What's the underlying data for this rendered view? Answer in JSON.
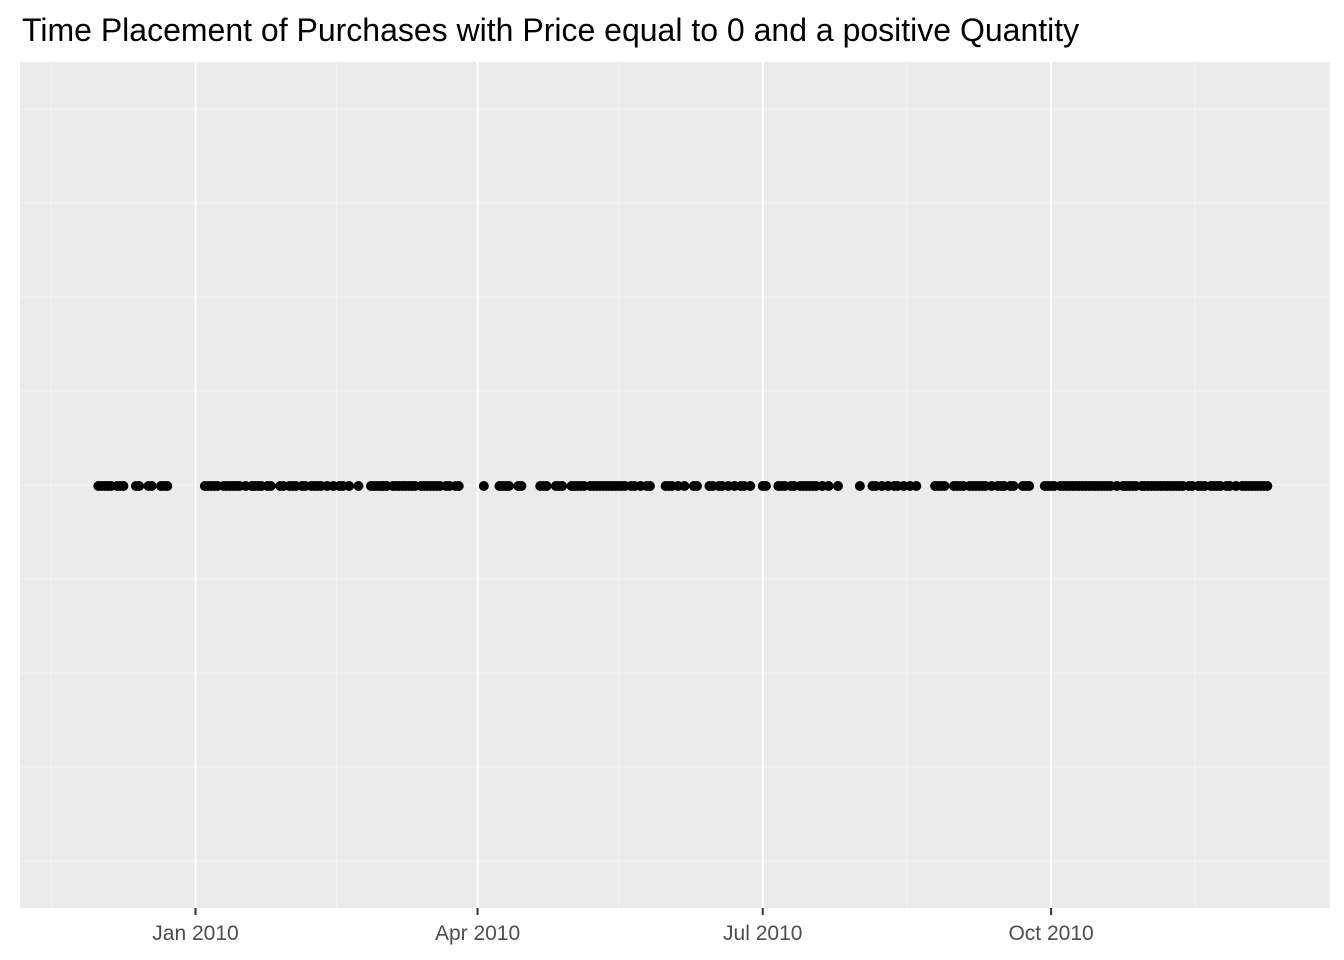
{
  "chart_data": {
    "type": "scatter",
    "title": "Time Placement of Purchases with Price equal to 0 and a positive Quantity",
    "xlabel": "",
    "ylabel": "",
    "x_axis": {
      "type": "date",
      "range": [
        "2009-11-06",
        "2010-12-29"
      ],
      "major_ticks": [
        {
          "date": "2010-01-01",
          "label": "Jan 2010"
        },
        {
          "date": "2010-04-01",
          "label": "Apr 2010"
        },
        {
          "date": "2010-07-01",
          "label": "Jul 2010"
        },
        {
          "date": "2010-10-01",
          "label": "Oct 2010"
        }
      ],
      "minor_ticks": [
        "2009-11-16",
        "2010-02-15",
        "2010-05-16",
        "2010-08-16",
        "2010-11-16"
      ]
    },
    "y_axis": {
      "ticks_shown": false,
      "gridlines": 9
    },
    "grid": true,
    "background": "#ebebeb",
    "point_color": "#000000",
    "x": [
      "2009-12-01",
      "2009-12-02",
      "2009-12-03",
      "2009-12-04",
      "2009-12-05",
      "2009-12-07",
      "2009-12-08",
      "2009-12-09",
      "2009-12-13",
      "2009-12-14",
      "2009-12-17",
      "2009-12-18",
      "2009-12-21",
      "2009-12-22",
      "2009-12-23",
      "2010-01-04",
      "2010-01-05",
      "2010-01-06",
      "2010-01-07",
      "2010-01-08",
      "2010-01-10",
      "2010-01-11",
      "2010-01-12",
      "2010-01-13",
      "2010-01-14",
      "2010-01-15",
      "2010-01-17",
      "2010-01-19",
      "2010-01-20",
      "2010-01-21",
      "2010-01-22",
      "2010-01-24",
      "2010-01-25",
      "2010-01-28",
      "2010-01-29",
      "2010-01-31",
      "2010-02-01",
      "2010-02-02",
      "2010-02-04",
      "2010-02-05",
      "2010-02-07",
      "2010-02-08",
      "2010-02-09",
      "2010-02-10",
      "2010-02-12",
      "2010-02-14",
      "2010-02-16",
      "2010-02-17",
      "2010-02-19",
      "2010-02-22",
      "2010-02-26",
      "2010-02-27",
      "2010-02-28",
      "2010-03-01",
      "2010-03-02",
      "2010-03-03",
      "2010-03-05",
      "2010-03-06",
      "2010-03-07",
      "2010-03-08",
      "2010-03-09",
      "2010-03-10",
      "2010-03-11",
      "2010-03-12",
      "2010-03-14",
      "2010-03-15",
      "2010-03-16",
      "2010-03-17",
      "2010-03-18",
      "2010-03-19",
      "2010-03-20",
      "2010-03-22",
      "2010-03-23",
      "2010-03-25",
      "2010-03-26",
      "2010-04-03",
      "2010-04-08",
      "2010-04-09",
      "2010-04-10",
      "2010-04-11",
      "2010-04-14",
      "2010-04-15",
      "2010-04-21",
      "2010-04-22",
      "2010-04-23",
      "2010-04-26",
      "2010-04-27",
      "2010-04-28",
      "2010-05-01",
      "2010-05-02",
      "2010-05-03",
      "2010-05-04",
      "2010-05-05",
      "2010-05-07",
      "2010-05-08",
      "2010-05-09",
      "2010-05-10",
      "2010-05-11",
      "2010-05-12",
      "2010-05-13",
      "2010-05-14",
      "2010-05-15",
      "2010-05-16",
      "2010-05-17",
      "2010-05-18",
      "2010-05-20",
      "2010-05-21",
      "2010-05-23",
      "2010-05-25",
      "2010-05-26",
      "2010-05-31",
      "2010-06-01",
      "2010-06-02",
      "2010-06-04",
      "2010-06-06",
      "2010-06-09",
      "2010-06-10",
      "2010-06-14",
      "2010-06-15",
      "2010-06-17",
      "2010-06-18",
      "2010-06-20",
      "2010-06-22",
      "2010-06-24",
      "2010-06-25",
      "2010-06-27",
      "2010-07-01",
      "2010-07-02",
      "2010-07-06",
      "2010-07-07",
      "2010-07-08",
      "2010-07-10",
      "2010-07-11",
      "2010-07-13",
      "2010-07-14",
      "2010-07-15",
      "2010-07-16",
      "2010-07-17",
      "2010-07-18",
      "2010-07-20",
      "2010-07-22",
      "2010-07-25",
      "2010-08-01",
      "2010-08-05",
      "2010-08-06",
      "2010-08-08",
      "2010-08-10",
      "2010-08-12",
      "2010-08-13",
      "2010-08-15",
      "2010-08-17",
      "2010-08-19",
      "2010-08-25",
      "2010-08-26",
      "2010-08-27",
      "2010-08-28",
      "2010-08-31",
      "2010-09-01",
      "2010-09-02",
      "2010-09-03",
      "2010-09-05",
      "2010-09-06",
      "2010-09-07",
      "2010-09-08",
      "2010-09-09",
      "2010-09-10",
      "2010-09-12",
      "2010-09-14",
      "2010-09-15",
      "2010-09-16",
      "2010-09-18",
      "2010-09-19",
      "2010-09-22",
      "2010-09-23",
      "2010-09-24",
      "2010-09-29",
      "2010-09-30",
      "2010-10-01",
      "2010-10-02",
      "2010-10-04",
      "2010-10-05",
      "2010-10-06",
      "2010-10-07",
      "2010-10-08",
      "2010-10-09",
      "2010-10-10",
      "2010-10-11",
      "2010-10-12",
      "2010-10-13",
      "2010-10-14",
      "2010-10-15",
      "2010-10-16",
      "2010-10-17",
      "2010-10-18",
      "2010-10-19",
      "2010-10-20",
      "2010-10-22",
      "2010-10-24",
      "2010-10-25",
      "2010-10-26",
      "2010-10-27",
      "2010-10-28",
      "2010-10-30",
      "2010-10-31",
      "2010-11-01",
      "2010-11-02",
      "2010-11-03",
      "2010-11-04",
      "2010-11-05",
      "2010-11-06",
      "2010-11-07",
      "2010-11-08",
      "2010-11-09",
      "2010-11-10",
      "2010-11-11",
      "2010-11-12",
      "2010-11-14",
      "2010-11-15",
      "2010-11-17",
      "2010-11-18",
      "2010-11-19",
      "2010-11-21",
      "2010-11-22",
      "2010-11-23",
      "2010-11-24",
      "2010-11-26",
      "2010-11-27",
      "2010-11-29",
      "2010-12-01",
      "2010-12-02",
      "2010-12-03",
      "2010-12-04",
      "2010-12-05",
      "2010-12-06",
      "2010-12-07",
      "2010-12-08",
      "2010-12-09"
    ],
    "y": 0
  }
}
